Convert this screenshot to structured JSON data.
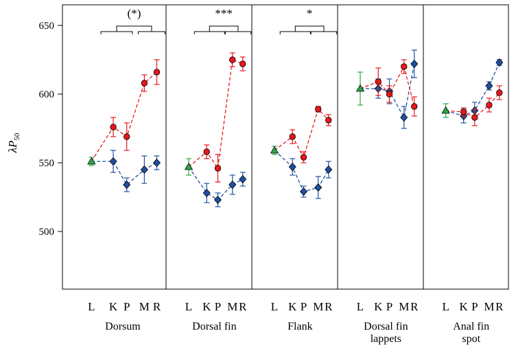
{
  "chart_data": {
    "type": "line",
    "ylabel_main": "λP",
    "ylabel_sub": "50",
    "ylim": [
      458,
      665
    ],
    "yticks": [
      "500",
      "550",
      "600",
      "650"
    ],
    "ytick_values": [
      500,
      550,
      600,
      650
    ],
    "x_tick_labels": [
      "L",
      "K",
      "P",
      "M",
      "R"
    ],
    "colors": {
      "red": "#e8171c",
      "blue": "#1f4fa3",
      "green": "#2aa84a",
      "bracket": "#000000"
    },
    "panels": [
      {
        "name_lines": [
          "Dorsum"
        ],
        "significance": "(*)",
        "L": {
          "value": 551,
          "err": 3
        },
        "red": [
          {
            "value": 576,
            "err": 7
          },
          {
            "value": 569,
            "err": 10
          },
          {
            "value": 608,
            "err": 6
          },
          {
            "value": 616,
            "err": 9
          }
        ],
        "blue": [
          {
            "value": 551,
            "err": 8
          },
          {
            "value": 534,
            "err": 5
          },
          {
            "value": 545,
            "err": 10
          },
          {
            "value": 550,
            "err": 5
          }
        ]
      },
      {
        "name_lines": [
          "Dorsal fin"
        ],
        "significance": "***",
        "L": {
          "value": 547,
          "err": 6
        },
        "red": [
          {
            "value": 558,
            "err": 5
          },
          {
            "value": 546,
            "err": 10
          },
          {
            "value": 625,
            "err": 5
          },
          {
            "value": 622,
            "err": 5
          }
        ],
        "blue": [
          {
            "value": 528,
            "err": 7
          },
          {
            "value": 523,
            "err": 5
          },
          {
            "value": 534,
            "err": 7
          },
          {
            "value": 538,
            "err": 5
          }
        ]
      },
      {
        "name_lines": [
          "Flank"
        ],
        "significance": "*",
        "L": {
          "value": 559,
          "err": 3
        },
        "red": [
          {
            "value": 569,
            "err": 5
          },
          {
            "value": 554,
            "err": 4
          },
          {
            "value": 589,
            "err": 2
          },
          {
            "value": 581,
            "err": 4
          }
        ],
        "blue": [
          {
            "value": 547,
            "err": 6
          },
          {
            "value": 529,
            "err": 4
          },
          {
            "value": 532,
            "err": 8
          },
          {
            "value": 545,
            "err": 6
          }
        ]
      },
      {
        "name_lines": [
          "Dorsal fin",
          "lappets"
        ],
        "significance": "",
        "L": {
          "value": 604,
          "err": 12
        },
        "red": [
          {
            "value": 609,
            "err": 10
          },
          {
            "value": 600,
            "err": 6
          },
          {
            "value": 620,
            "err": 5
          },
          {
            "value": 591,
            "err": 7
          }
        ],
        "blue": [
          {
            "value": 604,
            "err": 7
          },
          {
            "value": 602,
            "err": 9
          },
          {
            "value": 583,
            "err": 8
          },
          {
            "value": 622,
            "err": 10
          }
        ]
      },
      {
        "name_lines": [
          "Anal fin",
          "spot"
        ],
        "significance": "",
        "L": {
          "value": 588,
          "err": 5
        },
        "red": [
          {
            "value": 587,
            "err": 3
          },
          {
            "value": 583,
            "err": 6
          },
          {
            "value": 592,
            "err": 5
          },
          {
            "value": 601,
            "err": 5
          }
        ],
        "blue": [
          {
            "value": 584,
            "err": 5
          },
          {
            "value": 588,
            "err": 6
          },
          {
            "value": 606,
            "err": 3
          },
          {
            "value": 623,
            "err": 2
          }
        ]
      }
    ]
  }
}
